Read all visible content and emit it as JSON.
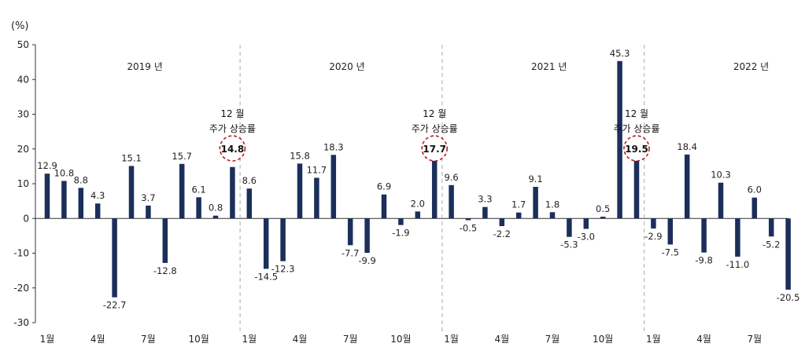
{
  "chart_data": {
    "type": "bar",
    "ylabel": "(%)",
    "ylim": [
      -30,
      50
    ],
    "yticks": [
      "50",
      "40",
      "30",
      "20",
      "10",
      "0",
      "-10",
      "-20",
      "-30"
    ],
    "bar_color": "#1b2f5a",
    "highlight_color": "#b22222",
    "values": [
      12.9,
      10.8,
      8.8,
      4.3,
      -22.7,
      15.1,
      3.7,
      -12.8,
      15.7,
      6.1,
      0.8,
      14.8,
      8.6,
      -14.5,
      -12.3,
      15.8,
      11.7,
      18.3,
      -7.7,
      -9.9,
      6.9,
      -1.9,
      2.0,
      17.7,
      9.6,
      -0.5,
      3.3,
      -2.2,
      1.7,
      9.1,
      1.8,
      -5.3,
      -3.0,
      0.5,
      45.3,
      19.5,
      -2.9,
      -7.5,
      18.4,
      -9.8,
      10.3,
      -11.0,
      6.0,
      -5.2,
      -20.5
    ],
    "labels": [
      "12.9",
      "10.8",
      "8.8",
      "4.3",
      "-22.7",
      "15.1",
      "3.7",
      "-12.8",
      "15.7",
      "6.1",
      "0.8",
      "14.8",
      "8.6",
      "-14.5",
      "-12.3",
      "15.8",
      "11.7",
      "18.3",
      "-7.7",
      "-9.9",
      "6.9",
      "-1.9",
      "2.0",
      "17.7",
      "9.6",
      "-0.5",
      "3.3",
      "-2.2",
      "1.7",
      "9.1",
      "1.8",
      "-5.3",
      "-3.0",
      "0.5",
      "45.3",
      "19.5",
      "-2.9",
      "-7.5",
      "18.4",
      "-9.8",
      "10.3",
      "-11.0",
      "6.0",
      "-5.2",
      "-20.5"
    ],
    "x_tick_labels": [
      {
        "index": 0,
        "text": "1월"
      },
      {
        "index": 3,
        "text": "4월"
      },
      {
        "index": 6,
        "text": "7월"
      },
      {
        "index": 9,
        "text": "10월"
      },
      {
        "index": 12,
        "text": "1월"
      },
      {
        "index": 15,
        "text": "4월"
      },
      {
        "index": 18,
        "text": "7월"
      },
      {
        "index": 21,
        "text": "10월"
      },
      {
        "index": 24,
        "text": "1월"
      },
      {
        "index": 27,
        "text": "4월"
      },
      {
        "index": 30,
        "text": "7월"
      },
      {
        "index": 33,
        "text": "10월"
      },
      {
        "index": 36,
        "text": "1월"
      },
      {
        "index": 39,
        "text": "4월"
      },
      {
        "index": 42,
        "text": "7월"
      }
    ],
    "years": [
      "2019 년",
      "2020 년",
      "2021 년",
      "2022 년"
    ],
    "highlights": [
      {
        "index": 11,
        "line1": "12 월",
        "line2": "주가 상승률",
        "value": "14.8"
      },
      {
        "index": 23,
        "line1": "12 월",
        "line2": "주가 상승률",
        "value": "17.7"
      },
      {
        "index": 35,
        "line1": "12 월",
        "line2": "주가 상승률",
        "value": "19.5"
      }
    ]
  }
}
